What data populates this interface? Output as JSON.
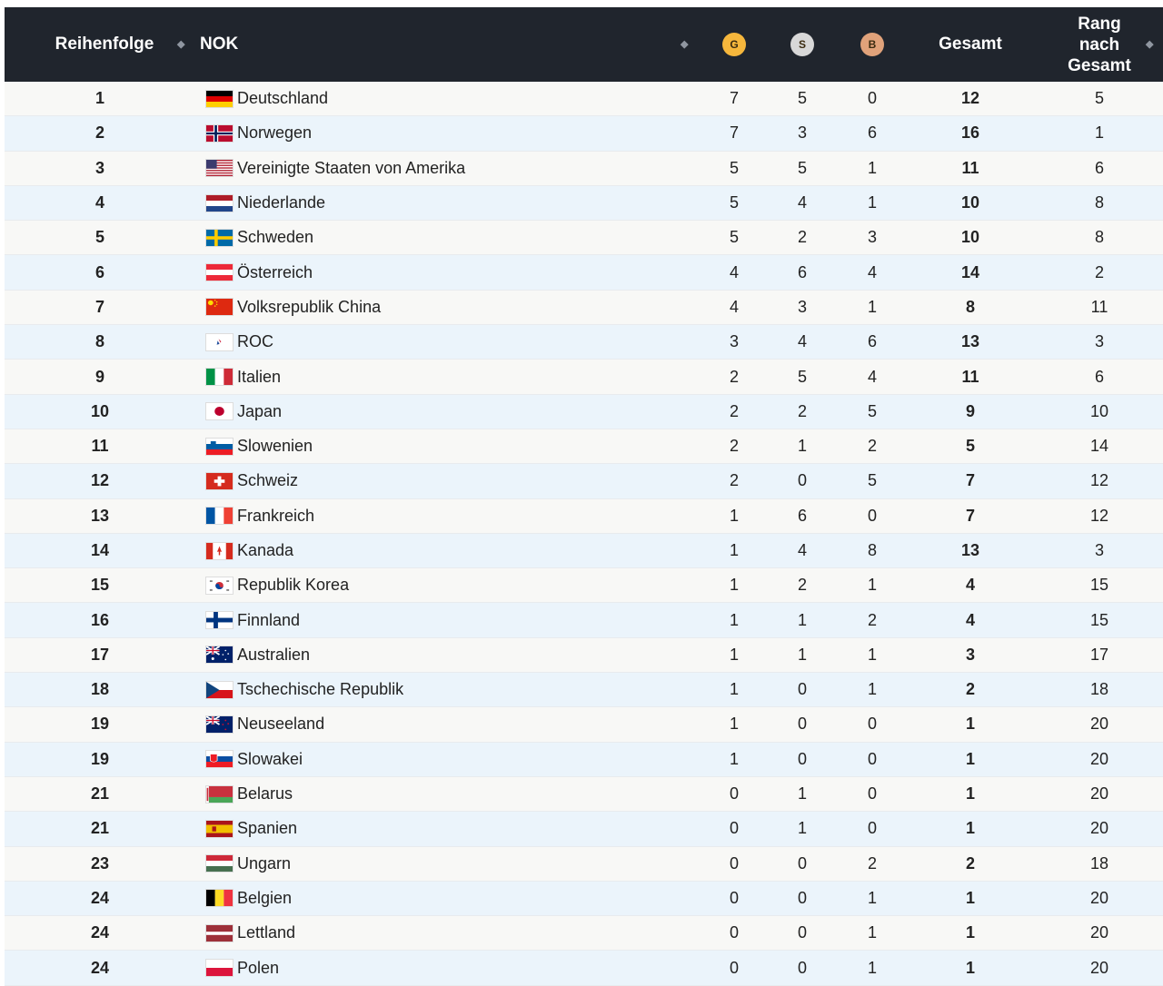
{
  "header": {
    "col_order": "Reihenfolge",
    "col_nok": "NOK",
    "gold_letter": "G",
    "silver_letter": "S",
    "bronze_letter": "B",
    "col_total": "Gesamt",
    "col_rank_line1": "Rang",
    "col_rank_line2": "nach",
    "col_rank_line3": "Gesamt",
    "sort_glyph": "◆"
  },
  "colors": {
    "header_bg": "#20252d",
    "gold": "#f6b73c",
    "silver": "#d8d8d8",
    "bronze": "#e0a27a",
    "row_odd": "#f8f8f6",
    "row_even": "#ebf4fb"
  },
  "rows": [
    {
      "rank": "1",
      "country": "Deutschland",
      "flag": "germany-flag",
      "g": "7",
      "s": "5",
      "b": "0",
      "total": "12",
      "rang": "5"
    },
    {
      "rank": "2",
      "country": "Norwegen",
      "flag": "norway-flag",
      "g": "7",
      "s": "3",
      "b": "6",
      "total": "16",
      "rang": "1"
    },
    {
      "rank": "3",
      "country": "Vereinigte Staaten von Amerika",
      "flag": "usa-flag",
      "g": "5",
      "s": "5",
      "b": "1",
      "total": "11",
      "rang": "6"
    },
    {
      "rank": "4",
      "country": "Niederlande",
      "flag": "netherlands-flag",
      "g": "5",
      "s": "4",
      "b": "1",
      "total": "10",
      "rang": "8"
    },
    {
      "rank": "5",
      "country": "Schweden",
      "flag": "sweden-flag",
      "g": "5",
      "s": "2",
      "b": "3",
      "total": "10",
      "rang": "8"
    },
    {
      "rank": "6",
      "country": "Österreich",
      "flag": "austria-flag",
      "g": "4",
      "s": "6",
      "b": "4",
      "total": "14",
      "rang": "2"
    },
    {
      "rank": "7",
      "country": "Volksrepublik China",
      "flag": "china-flag",
      "g": "4",
      "s": "3",
      "b": "1",
      "total": "8",
      "rang": "11"
    },
    {
      "rank": "8",
      "country": "ROC",
      "flag": "roc-flag",
      "g": "3",
      "s": "4",
      "b": "6",
      "total": "13",
      "rang": "3"
    },
    {
      "rank": "9",
      "country": "Italien",
      "flag": "italy-flag",
      "g": "2",
      "s": "5",
      "b": "4",
      "total": "11",
      "rang": "6"
    },
    {
      "rank": "10",
      "country": "Japan",
      "flag": "japan-flag",
      "g": "2",
      "s": "2",
      "b": "5",
      "total": "9",
      "rang": "10"
    },
    {
      "rank": "11",
      "country": "Slowenien",
      "flag": "slovenia-flag",
      "g": "2",
      "s": "1",
      "b": "2",
      "total": "5",
      "rang": "14"
    },
    {
      "rank": "12",
      "country": "Schweiz",
      "flag": "switzerland-flag",
      "g": "2",
      "s": "0",
      "b": "5",
      "total": "7",
      "rang": "12"
    },
    {
      "rank": "13",
      "country": "Frankreich",
      "flag": "france-flag",
      "g": "1",
      "s": "6",
      "b": "0",
      "total": "7",
      "rang": "12"
    },
    {
      "rank": "14",
      "country": "Kanada",
      "flag": "canada-flag",
      "g": "1",
      "s": "4",
      "b": "8",
      "total": "13",
      "rang": "3"
    },
    {
      "rank": "15",
      "country": "Republik Korea",
      "flag": "korea-flag",
      "g": "1",
      "s": "2",
      "b": "1",
      "total": "4",
      "rang": "15"
    },
    {
      "rank": "16",
      "country": "Finnland",
      "flag": "finland-flag",
      "g": "1",
      "s": "1",
      "b": "2",
      "total": "4",
      "rang": "15"
    },
    {
      "rank": "17",
      "country": "Australien",
      "flag": "australia-flag",
      "g": "1",
      "s": "1",
      "b": "1",
      "total": "3",
      "rang": "17"
    },
    {
      "rank": "18",
      "country": "Tschechische Republik",
      "flag": "czech-flag",
      "g": "1",
      "s": "0",
      "b": "1",
      "total": "2",
      "rang": "18"
    },
    {
      "rank": "19",
      "country": "Neuseeland",
      "flag": "new-zealand-flag",
      "g": "1",
      "s": "0",
      "b": "0",
      "total": "1",
      "rang": "20"
    },
    {
      "rank": "19",
      "country": "Slowakei",
      "flag": "slovakia-flag",
      "g": "1",
      "s": "0",
      "b": "0",
      "total": "1",
      "rang": "20"
    },
    {
      "rank": "21",
      "country": "Belarus",
      "flag": "belarus-flag",
      "g": "0",
      "s": "1",
      "b": "0",
      "total": "1",
      "rang": "20"
    },
    {
      "rank": "21",
      "country": "Spanien",
      "flag": "spain-flag",
      "g": "0",
      "s": "1",
      "b": "0",
      "total": "1",
      "rang": "20"
    },
    {
      "rank": "23",
      "country": "Ungarn",
      "flag": "hungary-flag",
      "g": "0",
      "s": "0",
      "b": "2",
      "total": "2",
      "rang": "18"
    },
    {
      "rank": "24",
      "country": "Belgien",
      "flag": "belgium-flag",
      "g": "0",
      "s": "0",
      "b": "1",
      "total": "1",
      "rang": "20"
    },
    {
      "rank": "24",
      "country": "Lettland",
      "flag": "latvia-flag",
      "g": "0",
      "s": "0",
      "b": "1",
      "total": "1",
      "rang": "20"
    },
    {
      "rank": "24",
      "country": "Polen",
      "flag": "poland-flag",
      "g": "0",
      "s": "0",
      "b": "1",
      "total": "1",
      "rang": "20"
    }
  ]
}
